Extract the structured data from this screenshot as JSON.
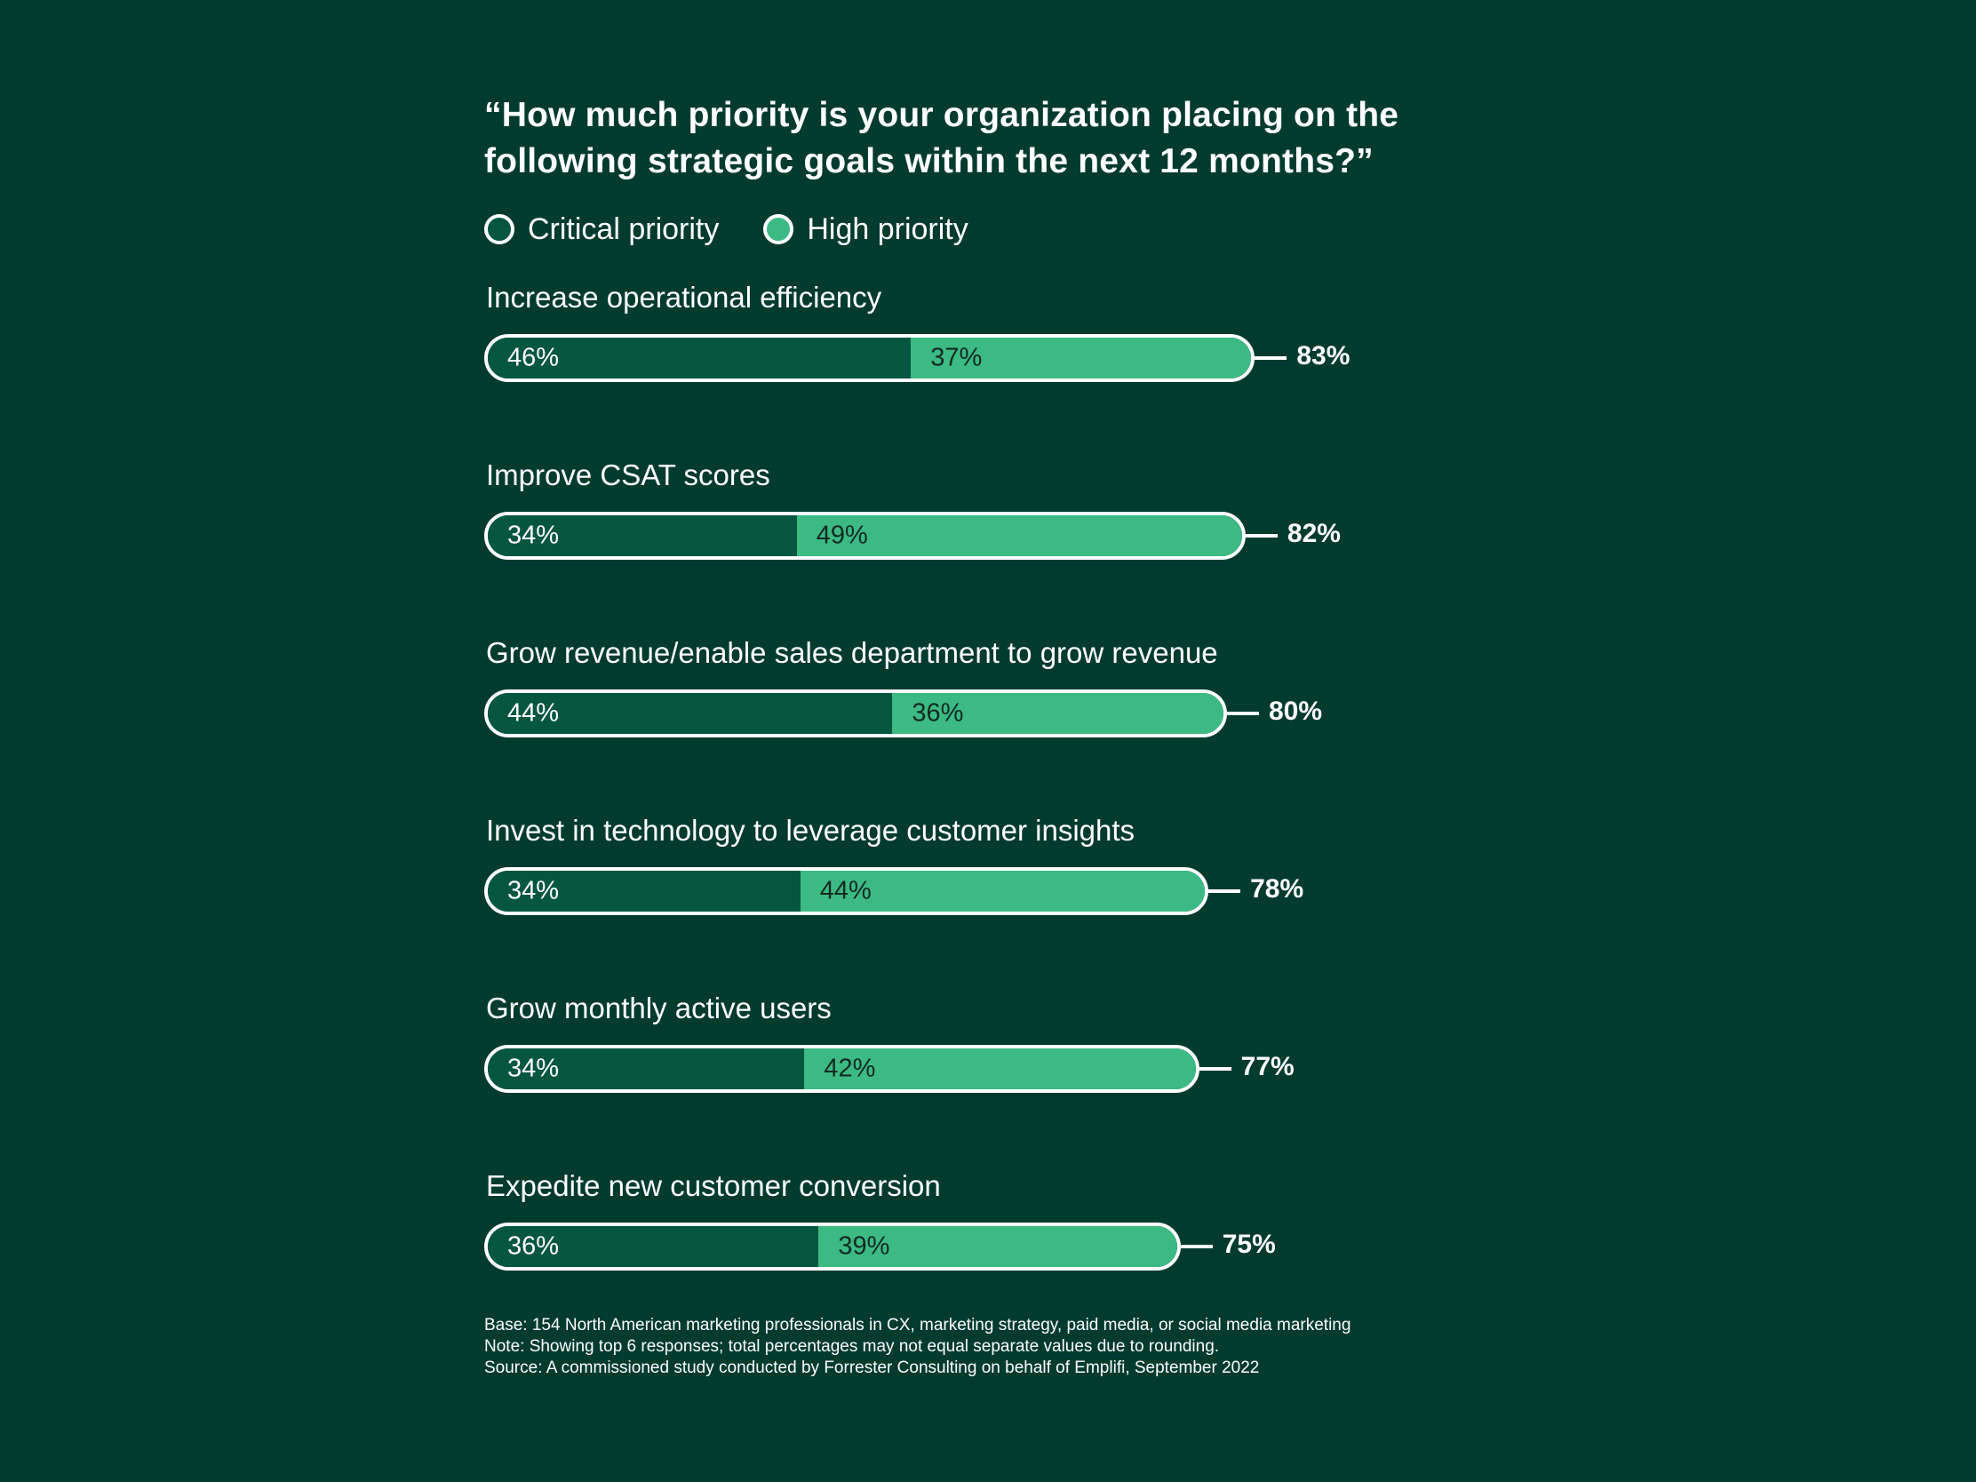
{
  "colors": {
    "background": "#013b2e",
    "critical": "#04563f",
    "high": "#3dba84",
    "outline": "#ffffff"
  },
  "chart_data": {
    "type": "bar",
    "orientation": "horizontal-stacked",
    "title": "“How much priority is your organization placing on the following strategic goals within the next 12 months?”",
    "legend": [
      "Critical priority",
      "High priority"
    ],
    "categories": [
      "Increase operational efficiency",
      "Improve CSAT scores",
      "Grow revenue/enable sales department to grow revenue",
      "Invest in technology to leverage customer insights",
      "Grow monthly active users",
      "Expedite new customer conversion"
    ],
    "series": [
      {
        "name": "Critical priority",
        "values": [
          46,
          34,
          44,
          34,
          34,
          36
        ]
      },
      {
        "name": "High priority",
        "values": [
          37,
          49,
          36,
          44,
          42,
          39
        ]
      }
    ],
    "totals": [
      83,
      82,
      80,
      78,
      77,
      75
    ],
    "unit": "%"
  },
  "footnotes": {
    "base": "Base: 154 North American marketing professionals in CX, marketing strategy, paid media, or social media marketing",
    "note": "Note: Showing top 6 responses; total percentages may not equal separate values due to rounding.",
    "source": "Source: A commissioned study conducted by Forrester Consulting on behalf of Emplifi, September 2022"
  }
}
